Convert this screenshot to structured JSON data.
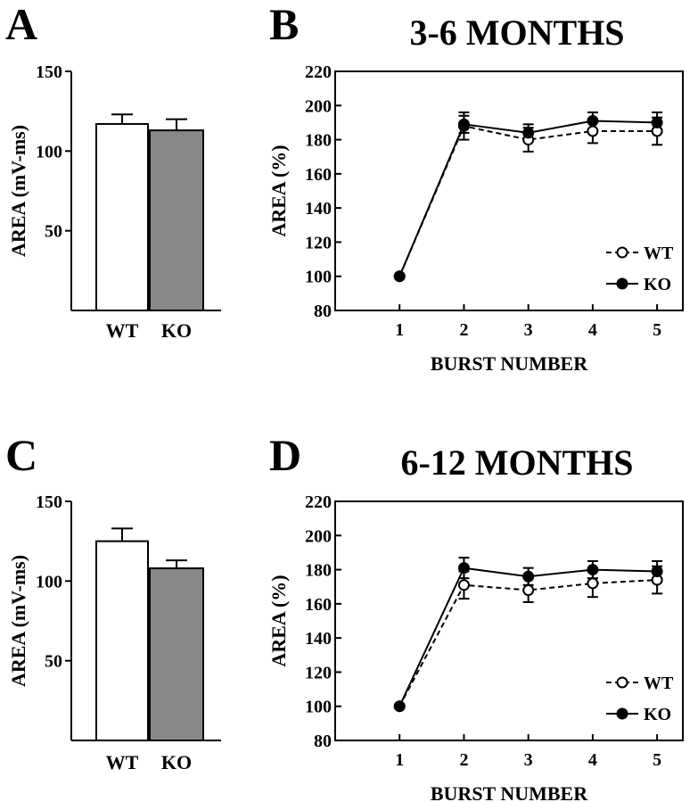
{
  "figure": {
    "panels": [
      {
        "id": "A",
        "type": "bar",
        "title": ""
      },
      {
        "id": "B",
        "type": "line",
        "title": "3-6 MONTHS"
      },
      {
        "id": "C",
        "type": "bar",
        "title": ""
      },
      {
        "id": "D",
        "type": "line",
        "title": "6-12 MONTHS"
      }
    ]
  },
  "chart_data": [
    {
      "panel": "A",
      "type": "bar",
      "title": "",
      "xlabel": "",
      "ylabel": "AREA (mV-ms)",
      "ylim": [
        0,
        150
      ],
      "yticks": [
        50,
        100,
        150
      ],
      "categories": [
        "WT",
        "KO"
      ],
      "values": [
        117,
        113
      ],
      "errors": [
        6,
        7
      ],
      "colors": [
        "#ffffff",
        "#888888"
      ],
      "grid": false
    },
    {
      "panel": "B",
      "type": "line",
      "title": "3-6 MONTHS",
      "xlabel": "BURST NUMBER",
      "ylabel": "AREA (%)",
      "ylim": [
        80,
        220
      ],
      "yticks": [
        80,
        100,
        120,
        140,
        160,
        180,
        200,
        220
      ],
      "xticks": [
        1,
        2,
        3,
        4,
        5
      ],
      "xlim": [
        0,
        5.4
      ],
      "x": [
        1,
        2,
        3,
        4,
        5
      ],
      "series": [
        {
          "name": "WT",
          "values": [
            100,
            188,
            180,
            185,
            185
          ],
          "errors": [
            0,
            8,
            7,
            7,
            8
          ],
          "marker": "open-circle",
          "line": "dashed"
        },
        {
          "name": "KO",
          "values": [
            100,
            189,
            184,
            191,
            190
          ],
          "errors": [
            0,
            5,
            5,
            5,
            6
          ],
          "marker": "filled-circle",
          "line": "solid"
        }
      ],
      "legend": "bottom-right",
      "grid": false
    },
    {
      "panel": "C",
      "type": "bar",
      "title": "",
      "xlabel": "",
      "ylabel": "AREA (mV-ms)",
      "ylim": [
        0,
        150
      ],
      "yticks": [
        50,
        100,
        150
      ],
      "categories": [
        "WT",
        "KO"
      ],
      "values": [
        125,
        108
      ],
      "errors": [
        8,
        5
      ],
      "colors": [
        "#ffffff",
        "#888888"
      ],
      "grid": false
    },
    {
      "panel": "D",
      "type": "line",
      "title": "6-12 MONTHS",
      "xlabel": "BURST NUMBER",
      "ylabel": "AREA (%)",
      "ylim": [
        80,
        220
      ],
      "yticks": [
        80,
        100,
        120,
        140,
        160,
        180,
        200,
        220
      ],
      "xticks": [
        1,
        2,
        3,
        4,
        5
      ],
      "xlim": [
        0,
        5.4
      ],
      "x": [
        1,
        2,
        3,
        4,
        5
      ],
      "series": [
        {
          "name": "WT",
          "values": [
            100,
            171,
            168,
            172,
            174
          ],
          "errors": [
            0,
            8,
            7,
            8,
            8
          ],
          "marker": "open-circle",
          "line": "dashed"
        },
        {
          "name": "KO",
          "values": [
            100,
            181,
            176,
            180,
            179
          ],
          "errors": [
            0,
            6,
            5,
            5,
            6
          ],
          "marker": "filled-circle",
          "line": "solid"
        }
      ],
      "legend": "bottom-right",
      "grid": false
    }
  ]
}
